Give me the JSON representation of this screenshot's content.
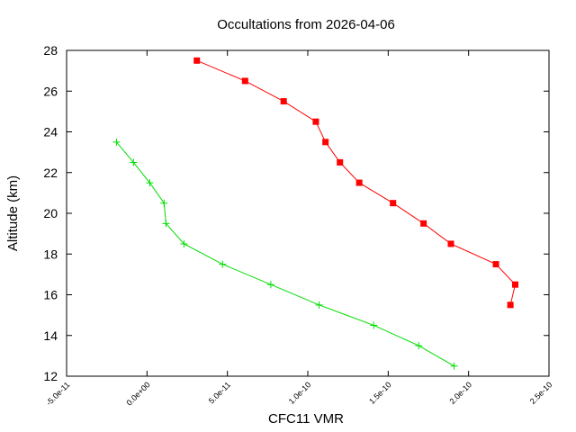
{
  "chart_data": {
    "type": "line",
    "title": "Occultations from 2026-04-06",
    "xlabel": "CFC11 VMR",
    "ylabel": "Altitude (km)",
    "xlim": [
      -5e-11,
      2.5e-10
    ],
    "ylim": [
      12,
      28
    ],
    "xticks": [
      -5e-11,
      0,
      5e-11,
      1e-10,
      1.5e-10,
      2e-10,
      2.5e-10
    ],
    "xtick_labels": [
      "-5.0e-11",
      "0.0e+00",
      "5.0e-11",
      "1.0e-10",
      "1.5e-10",
      "2.0e-10",
      "2.5e-10"
    ],
    "yticks": [
      12,
      14,
      16,
      18,
      20,
      22,
      24,
      26,
      28
    ],
    "ytick_labels": [
      "12",
      "14",
      "16",
      "18",
      "20",
      "22",
      "24",
      "26",
      "28"
    ],
    "grid": false,
    "series": [
      {
        "color": "#ff0000",
        "marker": "square",
        "x": [
          3.1e-11,
          6.1e-11,
          8.5e-11,
          1.05e-10,
          1.11e-10,
          1.2e-10,
          1.32e-10,
          1.53e-10,
          1.72e-10,
          1.89e-10,
          2.17e-10,
          2.29e-10,
          2.26e-10
        ],
        "y": [
          27.5,
          26.5,
          25.5,
          24.5,
          23.5,
          22.5,
          21.5,
          20.5,
          19.5,
          18.5,
          17.5,
          16.5,
          15.5
        ]
      },
      {
        "color": "#00dd00",
        "marker": "plus",
        "x": [
          -1.9e-11,
          -8.4e-12,
          1.7e-12,
          1.06e-11,
          1.18e-11,
          2.3e-11,
          4.7e-11,
          7.7e-11,
          1.07e-10,
          1.41e-10,
          1.69e-10,
          1.91e-10
        ],
        "y": [
          23.5,
          22.5,
          21.5,
          20.5,
          19.5,
          18.5,
          17.5,
          16.5,
          15.5,
          14.5,
          13.5,
          12.5
        ]
      }
    ]
  }
}
